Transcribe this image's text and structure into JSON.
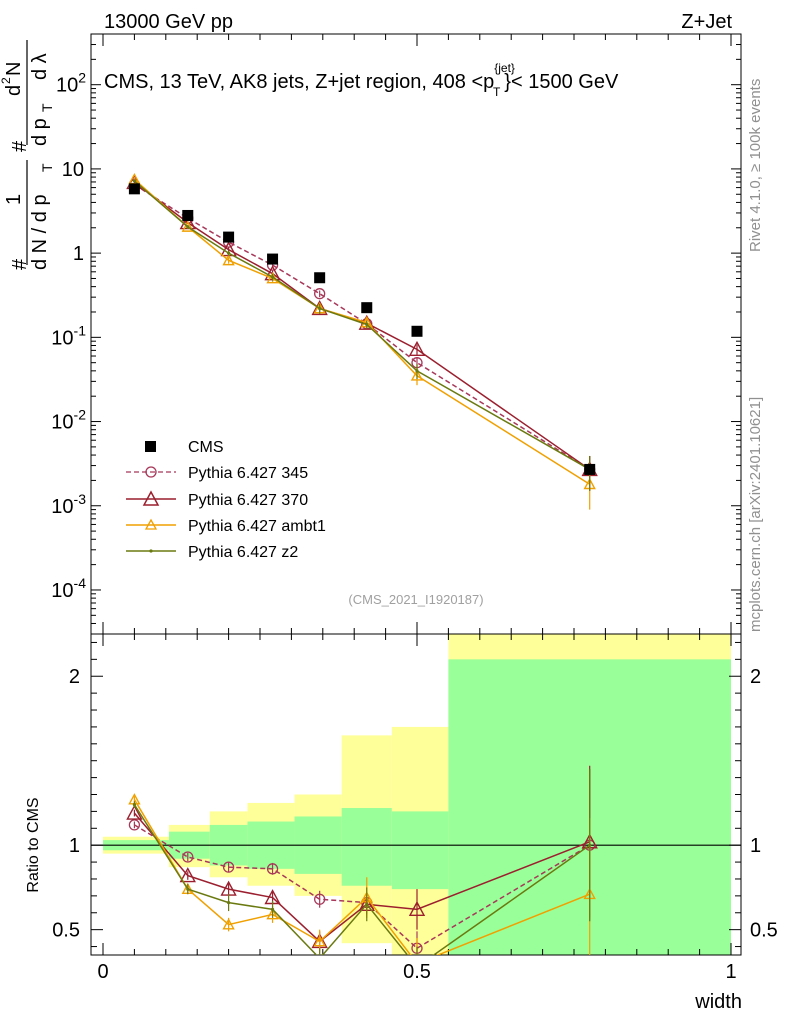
{
  "header": {
    "left": "13000 GeV pp",
    "right": "Z+Jet"
  },
  "main": {
    "title": "CMS, 13 TeV, AK8 jets, Z+jet region, 408 <p",
    "title_sup": "{jet}",
    "title_sub": "T",
    "title_tail": "}< 1500 GeV",
    "ylabel_parts": [
      "#",
      "1",
      "d N / d p",
      "T",
      "#",
      "d p",
      "T",
      "d",
      "2",
      "N",
      "d λ"
    ],
    "watermark": "(CMS_2021_I1920187)"
  },
  "side": {
    "right_top": "Rivet 4.1.0, ≥ 100k events",
    "right_bottom": "mcplots.cern.ch [arXiv:2401.10621]"
  },
  "ratio": {
    "ylabel": "Ratio to CMS",
    "xlabel": "width"
  },
  "colors": {
    "data": "#000000",
    "p345": "#a8385a",
    "p370": "#9b1f2e",
    "ambt1": "#f0a000",
    "z2": "#6b7a10",
    "band_inner": "#99ff99",
    "band_outer": "#ffff99"
  },
  "chart_data": [
    {
      "type": "scatter",
      "panel": "main",
      "title": "CMS, 13 TeV, AK8 jets, Z+jet region, 408 <p_T^{jet}< 1500 GeV",
      "xlabel": "width",
      "ylabel": "1/(dN/dp_T) d²N/(dp_T dλ)",
      "xlim": [
        0,
        1
      ],
      "ylim": [
        3e-05,
        400
      ],
      "yscale": "log",
      "y_tick_labels": [
        "10^-4",
        "10^-3",
        "10^-2",
        "10^-1",
        "1",
        "10",
        "10^2"
      ],
      "series": [
        {
          "name": "CMS",
          "style": "square",
          "x": [
            0.05,
            0.135,
            0.2,
            0.27,
            0.345,
            0.42,
            0.5,
            0.775
          ],
          "y": [
            5.8,
            2.8,
            1.55,
            0.85,
            0.51,
            0.225,
            0.118,
            0.0027
          ]
        },
        {
          "name": "Pythia 6.427 345",
          "style": "circle-dashed",
          "x": [
            0.05,
            0.135,
            0.2,
            0.27,
            0.345,
            0.42,
            0.5,
            0.775
          ],
          "y": [
            6.5,
            2.6,
            1.35,
            0.72,
            0.33,
            0.145,
            0.05,
            0.0027
          ],
          "err": [
            0.25,
            0.12,
            0.08,
            0.05,
            0.03,
            0.015,
            0.008,
            0.0012
          ]
        },
        {
          "name": "Pythia 6.427 370",
          "style": "triangle-solid",
          "x": [
            0.05,
            0.135,
            0.2,
            0.27,
            0.345,
            0.42,
            0.5,
            0.775
          ],
          "y": [
            6.9,
            2.3,
            1.1,
            0.57,
            0.22,
            0.147,
            0.072,
            0.0027
          ],
          "err": [
            0.25,
            0.1,
            0.07,
            0.05,
            0.03,
            0.015,
            0.01,
            0.0012
          ]
        },
        {
          "name": "Pythia 6.427 ambt1",
          "style": "triangle-small",
          "x": [
            0.05,
            0.135,
            0.2,
            0.27,
            0.345,
            0.42,
            0.5,
            0.775
          ],
          "y": [
            7.5,
            2.05,
            0.82,
            0.5,
            0.22,
            0.15,
            0.035,
            0.0018
          ],
          "err": [
            0.3,
            0.1,
            0.07,
            0.05,
            0.03,
            0.015,
            0.008,
            0.0009
          ]
        },
        {
          "name": "Pythia 6.427 z2",
          "style": "dot",
          "x": [
            0.05,
            0.135,
            0.2,
            0.27,
            0.345,
            0.42,
            0.5,
            0.775
          ],
          "y": [
            7.2,
            2.05,
            1.0,
            0.52,
            0.22,
            0.142,
            0.04,
            0.0027
          ],
          "err": [
            0.3,
            0.1,
            0.07,
            0.05,
            0.03,
            0.015,
            0.008,
            0.0012
          ]
        }
      ]
    },
    {
      "type": "line",
      "panel": "ratio",
      "xlabel": "width",
      "ylabel": "Ratio to CMS",
      "xlim": [
        0,
        1
      ],
      "ylim": [
        0.35,
        2.25
      ],
      "x_ticks": [
        0,
        0.5,
        1
      ],
      "y_ticks": [
        0.5,
        1,
        2
      ],
      "bands": {
        "bin_edges": [
          0,
          0.105,
          0.17,
          0.23,
          0.305,
          0.38,
          0.46,
          0.55,
          1.0
        ],
        "inner_lo": [
          0.97,
          0.92,
          0.88,
          0.86,
          0.83,
          0.76,
          0.74,
          0.35
        ],
        "inner_hi": [
          1.03,
          1.08,
          1.12,
          1.14,
          1.17,
          1.22,
          1.2,
          2.1
        ],
        "outer_lo": [
          0.95,
          0.87,
          0.81,
          0.76,
          0.7,
          0.42,
          0.35,
          0.35
        ],
        "outer_hi": [
          1.05,
          1.12,
          1.2,
          1.25,
          1.3,
          1.65,
          1.7,
          2.25
        ]
      },
      "reference": 1.0,
      "series": [
        {
          "name": "Pythia 6.427 345",
          "x": [
            0.05,
            0.135,
            0.2,
            0.27,
            0.345,
            0.42,
            0.5,
            0.775
          ],
          "y": [
            1.12,
            0.93,
            0.87,
            0.86,
            0.68,
            0.66,
            0.39,
            1.0
          ],
          "err": [
            0.02,
            0.025,
            0.03,
            0.035,
            0.05,
            0.06,
            0.1,
            0.45
          ]
        },
        {
          "name": "Pythia 6.427 370",
          "x": [
            0.05,
            0.135,
            0.2,
            0.27,
            0.345,
            0.42,
            0.5,
            0.775
          ],
          "y": [
            1.19,
            0.82,
            0.74,
            0.69,
            0.43,
            0.65,
            0.62,
            1.02
          ],
          "err": [
            0.02,
            0.025,
            0.035,
            0.04,
            0.06,
            0.06,
            0.12,
            0.45
          ]
        },
        {
          "name": "Pythia 6.427 ambt1",
          "x": [
            0.05,
            0.135,
            0.2,
            0.27,
            0.345,
            0.42,
            0.5,
            0.775
          ],
          "y": [
            1.27,
            0.74,
            0.53,
            0.59,
            0.43,
            0.69,
            0.3,
            0.71
          ],
          "err": [
            0.02,
            0.03,
            0.04,
            0.05,
            0.07,
            0.12,
            0.15,
            0.45
          ]
        },
        {
          "name": "Pythia 6.427 z2",
          "x": [
            0.05,
            0.135,
            0.2,
            0.27,
            0.345,
            0.42,
            0.5,
            0.775
          ],
          "y": [
            1.24,
            0.74,
            0.66,
            0.62,
            0.33,
            0.65,
            0.28,
            1.0
          ],
          "err": [
            0.02,
            0.03,
            0.05,
            0.05,
            0.06,
            0.1,
            0.12,
            0.45
          ]
        }
      ]
    }
  ]
}
